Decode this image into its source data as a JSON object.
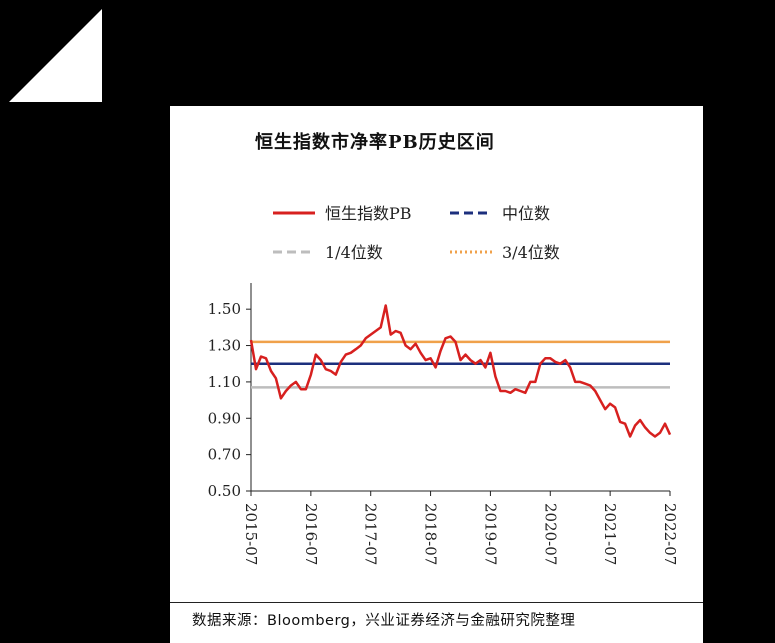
{
  "chart_data": {
    "type": "line",
    "title": "恒生指数市净率PB历史区间",
    "source": "数据来源：Bloomberg，兴业证券经济与金融研究院整理",
    "ylim": [
      0.5,
      1.6
    ],
    "y_ticks": [
      "0.50",
      "0.70",
      "0.90",
      "1.10",
      "1.30",
      "1.50"
    ],
    "y_tick_values": [
      0.5,
      0.7,
      0.9,
      1.1,
      1.3,
      1.5
    ],
    "x_ticks": [
      "2015-07",
      "2016-07",
      "2017-07",
      "2018-07",
      "2019-07",
      "2020-07",
      "2021-07",
      "2022-07"
    ],
    "xlim": [
      "2015-07",
      "2022-07"
    ],
    "legend_position": "top",
    "series": [
      {
        "name": "恒生指数PB",
        "color": "#d7201f",
        "style": "solid",
        "x": [
          "2015-07",
          "2015-08",
          "2015-09",
          "2015-10",
          "2015-11",
          "2015-12",
          "2016-01",
          "2016-02",
          "2016-03",
          "2016-04",
          "2016-05",
          "2016-06",
          "2016-07",
          "2016-08",
          "2016-09",
          "2016-10",
          "2016-11",
          "2016-12",
          "2017-01",
          "2017-02",
          "2017-03",
          "2017-04",
          "2017-05",
          "2017-06",
          "2017-07",
          "2017-08",
          "2017-09",
          "2017-10",
          "2017-11",
          "2017-12",
          "2018-01",
          "2018-02",
          "2018-03",
          "2018-04",
          "2018-05",
          "2018-06",
          "2018-07",
          "2018-08",
          "2018-09",
          "2018-10",
          "2018-11",
          "2018-12",
          "2019-01",
          "2019-02",
          "2019-03",
          "2019-04",
          "2019-05",
          "2019-06",
          "2019-07",
          "2019-08",
          "2019-09",
          "2019-10",
          "2019-11",
          "2019-12",
          "2020-01",
          "2020-02",
          "2020-03",
          "2020-04",
          "2020-05",
          "2020-06",
          "2020-07",
          "2020-08",
          "2020-09",
          "2020-10",
          "2020-11",
          "2020-12",
          "2021-01",
          "2021-02",
          "2021-03",
          "2021-04",
          "2021-05",
          "2021-06",
          "2021-07",
          "2021-08",
          "2021-09",
          "2021-10",
          "2021-11",
          "2021-12",
          "2022-01",
          "2022-02",
          "2022-03",
          "2022-04",
          "2022-05",
          "2022-06",
          "2022-07"
        ],
        "values": [
          1.33,
          1.17,
          1.24,
          1.23,
          1.16,
          1.12,
          1.01,
          1.05,
          1.08,
          1.1,
          1.06,
          1.06,
          1.14,
          1.25,
          1.22,
          1.17,
          1.16,
          1.14,
          1.21,
          1.25,
          1.26,
          1.28,
          1.3,
          1.34,
          1.36,
          1.38,
          1.4,
          1.52,
          1.36,
          1.38,
          1.37,
          1.3,
          1.28,
          1.31,
          1.26,
          1.22,
          1.23,
          1.18,
          1.27,
          1.34,
          1.35,
          1.32,
          1.22,
          1.25,
          1.22,
          1.2,
          1.22,
          1.18,
          1.26,
          1.13,
          1.05,
          1.05,
          1.04,
          1.06,
          1.05,
          1.04,
          1.1,
          1.1,
          1.2,
          1.23,
          1.23,
          1.21,
          1.2,
          1.22,
          1.18,
          1.1,
          1.1,
          1.09,
          1.08,
          1.05,
          1.0,
          0.95,
          0.98,
          0.96,
          0.88,
          0.87,
          0.8,
          0.86,
          0.89,
          0.85,
          0.82,
          0.8,
          0.82,
          0.87,
          0.81
        ]
      },
      {
        "name": "中位数",
        "color": "#1c2f7d",
        "style": "dashed",
        "constant": 1.2
      },
      {
        "name": "1/4位数",
        "color": "#bdbdbd",
        "style": "dashed",
        "constant": 1.07
      },
      {
        "name": "3/4位数",
        "color": "#f0a14a",
        "style": "dotted",
        "constant": 1.32
      }
    ]
  }
}
